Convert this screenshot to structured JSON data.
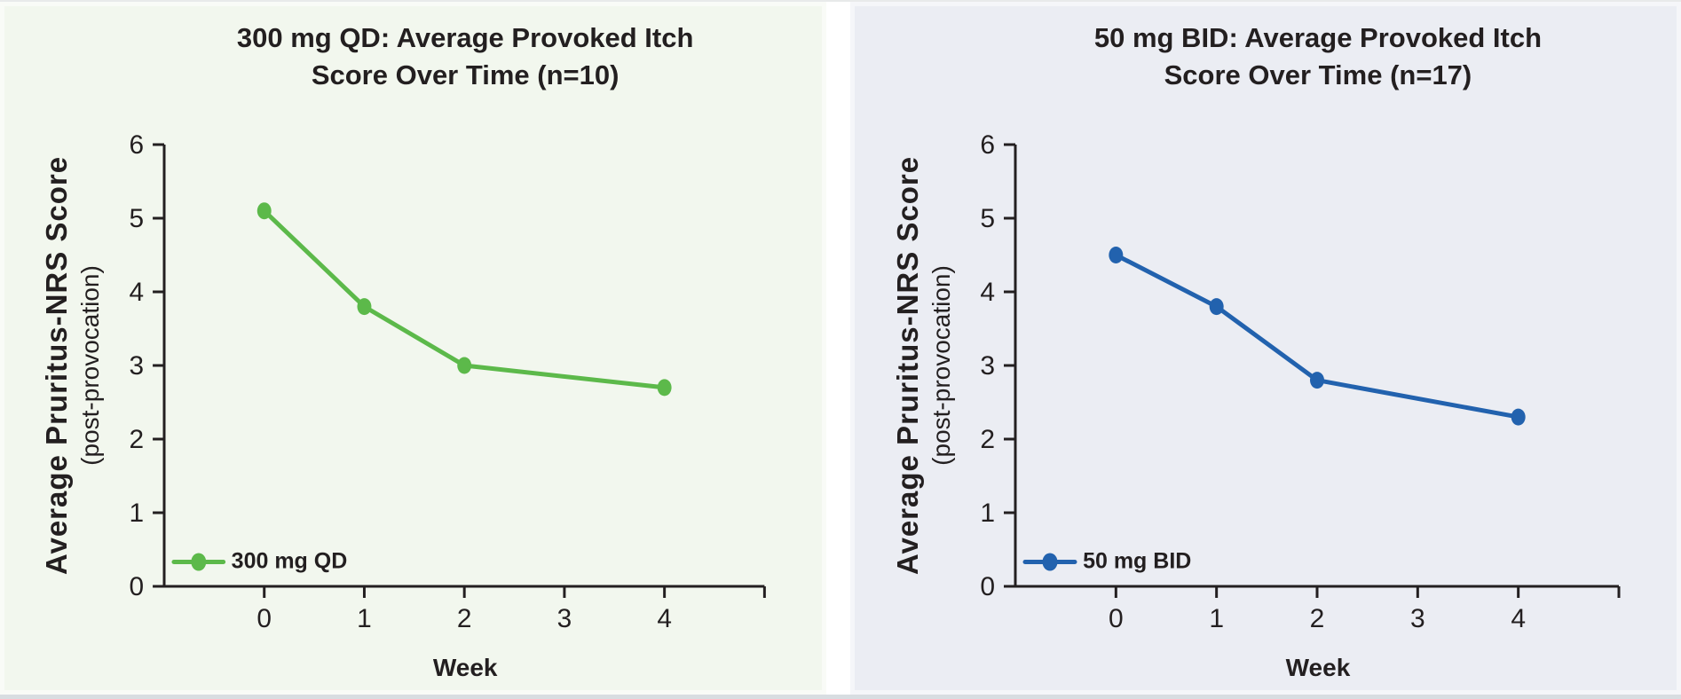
{
  "page": {
    "background": "#ffffff",
    "top_strip_color": "#e8eaea",
    "bottom_strip_color": "#d8dde1",
    "divider_color": "#ffffff",
    "text_color": "#231f20",
    "axis_color": "#231f20"
  },
  "chart_data": [
    {
      "type": "line",
      "title": "300 mg QD: Average Provoked Itch Score Over Time (n=10)",
      "title_lines": [
        "300 mg QD: Average Provoked Itch",
        "Score Over Time (n=10)"
      ],
      "xlabel": "Week",
      "ylabel": "Average Pruritus-NRS Score",
      "ylabel_sub": "(post-provocation)",
      "background": "#f2f7ee",
      "series": [
        {
          "name": "300 mg QD",
          "color": "#5cb94a",
          "x": [
            0,
            1,
            2,
            4
          ],
          "y": [
            5.1,
            3.8,
            3.0,
            2.7
          ]
        }
      ],
      "xticks": [
        0,
        1,
        2,
        3,
        4
      ],
      "yticks": [
        0,
        1,
        2,
        3,
        4,
        5,
        6
      ],
      "xlim": [
        -1,
        5
      ],
      "ylim": [
        0,
        6
      ],
      "grid": false,
      "legend_position": "bottom-left"
    },
    {
      "type": "line",
      "title": "50 mg BID: Average Provoked Itch Score Over Time (n=17)",
      "title_lines": [
        "50 mg BID: Average Provoked Itch",
        "Score Over Time (n=17)"
      ],
      "xlabel": "Week",
      "ylabel": "Average Pruritus-NRS Score",
      "ylabel_sub": "(post-provocation)",
      "background": "#ebedf3",
      "series": [
        {
          "name": "50 mg BID",
          "color": "#2262ae",
          "x": [
            0,
            1,
            2,
            4
          ],
          "y": [
            4.5,
            3.8,
            2.8,
            2.3
          ]
        }
      ],
      "xticks": [
        0,
        1,
        2,
        3,
        4
      ],
      "yticks": [
        0,
        1,
        2,
        3,
        4,
        5,
        6
      ],
      "xlim": [
        -1,
        5
      ],
      "ylim": [
        0,
        6
      ],
      "grid": false,
      "legend_position": "bottom-left"
    }
  ]
}
